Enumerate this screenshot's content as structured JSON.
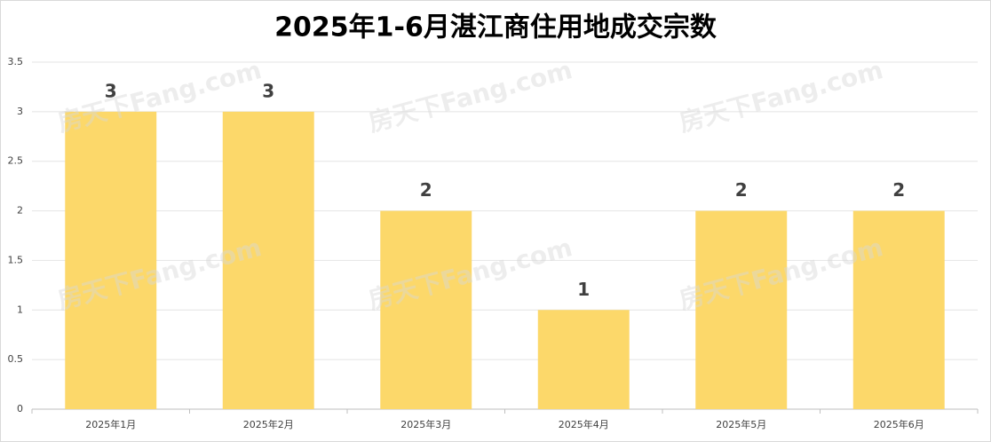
{
  "chart_data": {
    "type": "bar",
    "title": "2025年1-6月湛江商住用地成交宗数",
    "categories": [
      "2025年1月",
      "2025年2月",
      "2025年3月",
      "2025年4月",
      "2025年5月",
      "2025年6月"
    ],
    "values": [
      3,
      3,
      2,
      1,
      2,
      2
    ],
    "color": "#fcd86a",
    "ylim": [
      0,
      3.5
    ],
    "yticks": [
      0,
      0.5,
      1,
      1.5,
      2,
      2.5,
      3,
      3.5
    ],
    "grid": true,
    "watermark": "房天下Fang.com"
  }
}
